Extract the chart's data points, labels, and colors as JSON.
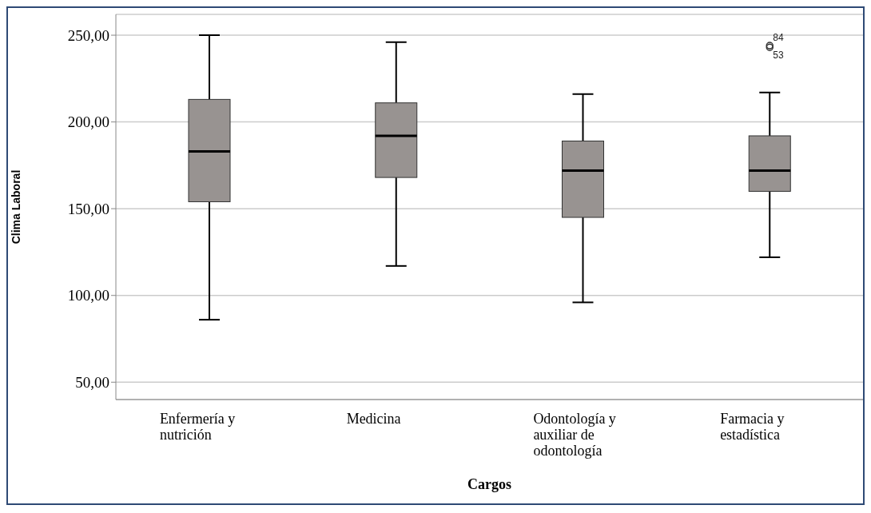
{
  "chart_data": {
    "type": "box",
    "xlabel": "Cargos",
    "ylabel": "Clima Laboral",
    "categories": [
      "Enfermería y nutrición",
      "Medicina",
      "Odontología y auxiliar de odontología",
      "Farmacia y estadística"
    ],
    "color": "#989391",
    "boxes": [
      {
        "low": 86,
        "q1": 154,
        "median": 183,
        "q3": 213,
        "high": 250
      },
      {
        "low": 117,
        "q1": 168,
        "median": 192,
        "q3": 211,
        "high": 246
      },
      {
        "low": 96,
        "q1": 145,
        "median": 172,
        "q3": 189,
        "high": 216
      },
      {
        "low": 122,
        "q1": 160,
        "median": 172,
        "q3": 192,
        "high": 217,
        "outliers": [
          244,
          243
        ]
      }
    ],
    "annotations": [
      "84",
      "53"
    ],
    "ylim": [
      40,
      262
    ],
    "yticks": [
      {
        "value": 50,
        "label": "50,00"
      },
      {
        "value": 100,
        "label": "100,00"
      },
      {
        "value": 150,
        "label": "150,00"
      },
      {
        "value": 200,
        "label": "200,00"
      },
      {
        "value": 250,
        "label": "250,00"
      }
    ],
    "grid": "y"
  }
}
